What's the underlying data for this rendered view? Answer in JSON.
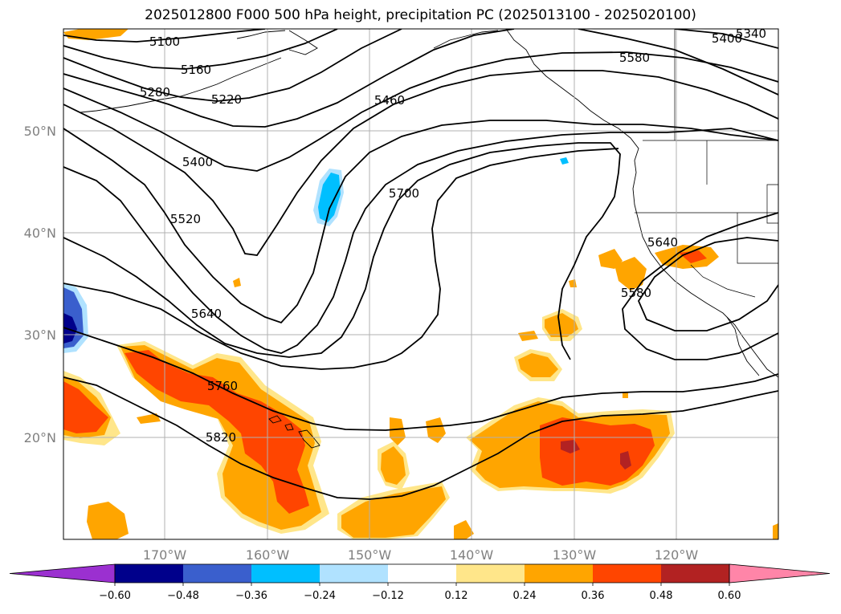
{
  "title": "2025012800 F000 500 hPa height, precipitation PC (2025013100 - 2025020100)",
  "lat_labels": [
    "50°N",
    "40°N",
    "30°N",
    "20°N"
  ],
  "lon_labels": [
    "170°W",
    "160°W",
    "150°W",
    "140°W",
    "130°W",
    "120°W"
  ],
  "contour_labels": [
    "5100",
    "5160",
    "5280",
    "5220",
    "5400",
    "5460",
    "5520",
    "5700",
    "5640",
    "5760",
    "5820",
    "5580",
    "5640",
    "5580",
    "5400",
    "5340"
  ],
  "colorbar": {
    "ticks": [
      "−0.60",
      "−0.48",
      "−0.36",
      "−0.24",
      "−0.12",
      "0.12",
      "0.24",
      "0.36",
      "0.48",
      "0.60"
    ],
    "colors": [
      "#9b30d0",
      "#00008b",
      "#3a5fcd",
      "#00bfff",
      "#b0e2ff",
      "#ffffff",
      "#ffe68a",
      "#ffa500",
      "#ff4500",
      "#b22222",
      "#ff85a8"
    ]
  },
  "palette": {
    "light_yellow": "#ffe68a",
    "orange": "#ffa500",
    "red_orange": "#ff4500",
    "dark_red": "#b22222",
    "light_blue": "#b0e2ff",
    "sky_blue": "#00bfff",
    "medium_blue": "#3a5fcd",
    "navy": "#00008b"
  }
}
